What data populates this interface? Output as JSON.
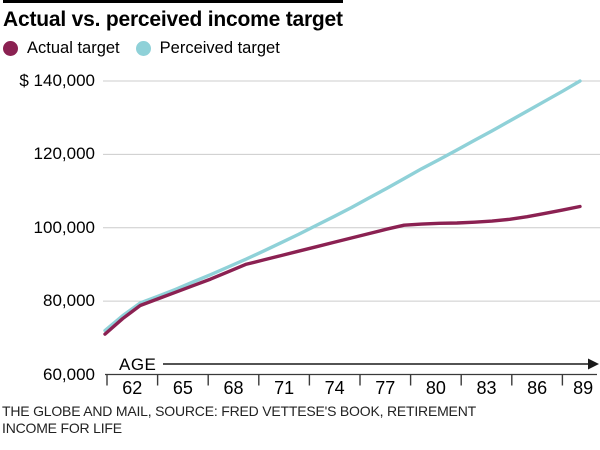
{
  "title": "Actual vs. perceived income target",
  "legend": {
    "items": [
      {
        "label": "Actual target",
        "color": "#8b2152"
      },
      {
        "label": "Perceived target",
        "color": "#8fd1d8"
      }
    ]
  },
  "axis": {
    "x_title": "AGE"
  },
  "attribution": {
    "line1": "THE GLOBE AND MAIL, SOURCE: FRED VETTESE'S BOOK, RETIREMENT",
    "line2": "INCOME FOR LIFE"
  },
  "chart_data": {
    "type": "line",
    "title": "Actual vs. perceived income target",
    "xlabel": "AGE",
    "ylabel": "$",
    "xlim": [
      62,
      89
    ],
    "ylim": [
      60000,
      140000
    ],
    "grid": "horizontal",
    "legend_position": "top-left",
    "x": [
      62,
      63,
      64,
      65,
      66,
      67,
      68,
      69,
      70,
      71,
      72,
      73,
      74,
      75,
      76,
      77,
      78,
      79,
      80,
      81,
      82,
      83,
      84,
      85,
      86,
      87,
      88,
      89
    ],
    "series": [
      {
        "name": "Actual target",
        "color": "#8b2152",
        "values": [
          71000,
          75200,
          78800,
          80600,
          82400,
          84200,
          86000,
          88000,
          90000,
          91200,
          92400,
          93600,
          94800,
          96000,
          97200,
          98400,
          99600,
          100700,
          101000,
          101200,
          101300,
          101500,
          101800,
          102300,
          103000,
          103900,
          104800,
          105800
        ]
      },
      {
        "name": "Perceived target",
        "color": "#8fd1d8",
        "values": [
          72000,
          76000,
          79500,
          81300,
          83200,
          85200,
          87200,
          89300,
          91400,
          93600,
          95900,
          98200,
          100600,
          103000,
          105500,
          108100,
          110700,
          113400,
          116100,
          118600,
          121200,
          123800,
          126400,
          129100,
          131800,
          134500,
          137200,
          140000
        ]
      }
    ],
    "y_ticks": [
      {
        "value": 140000,
        "label": "$ 140,000"
      },
      {
        "value": 120000,
        "label": "120,000"
      },
      {
        "value": 100000,
        "label": "100,000"
      },
      {
        "value": 80000,
        "label": "80,000"
      },
      {
        "value": 60000,
        "label": "60,000"
      }
    ],
    "x_tick_labels": [
      "62",
      "65",
      "68",
      "71",
      "74",
      "77",
      "80",
      "83",
      "86",
      "89"
    ],
    "colors": {
      "gridline": "#cccccc",
      "axis": "#3a3a3a",
      "arrow": "#1a1a1a"
    }
  }
}
